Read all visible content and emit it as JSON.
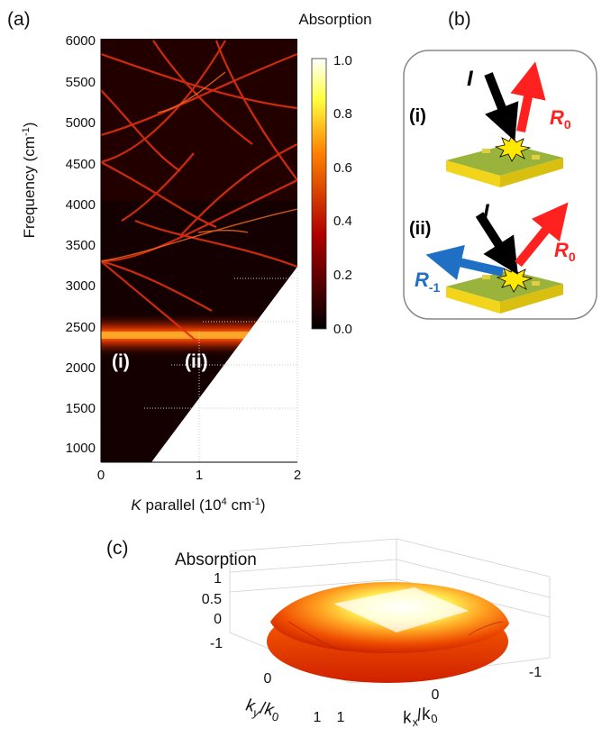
{
  "panels": {
    "a": {
      "label": "(a)"
    },
    "b": {
      "label": "(b)"
    },
    "c": {
      "label": "(c)"
    }
  },
  "colors": {
    "hot_black": "#000000",
    "hot_red": "#c00000",
    "hot_orange": "#ff7a00",
    "hot_yellow": "#ffff40",
    "hot_white": "#ffffff",
    "incident_arrow": "#000000",
    "reflected_arrow": "#ff2020",
    "diffracted_arrow": "#1f6fc4",
    "substrate_green": "#9ab33a",
    "substrate_yellow": "#f2d51a",
    "sparkle": "#ffe800"
  },
  "chart_data": [
    {
      "type": "heatmap",
      "title": "Absorption",
      "ylabel": "Frequency (cm⁻¹)",
      "xlabel": "K parallel (10⁴ cm⁻¹)",
      "xlim": [
        0,
        2
      ],
      "ylim": [
        800,
        6000
      ],
      "xticks": [
        "0",
        "1",
        "2"
      ],
      "yticks": [
        "1000",
        "1500",
        "2000",
        "2500",
        "3000",
        "3500",
        "4000",
        "4500",
        "5000",
        "5500",
        "6000"
      ],
      "colorbar": {
        "min": 0.0,
        "max": 1.0,
        "ticks": [
          "0.0",
          "0.2",
          "0.4",
          "0.6",
          "0.8",
          "1.0"
        ],
        "colormap": "hot"
      },
      "annotations": [
        "(i)",
        "(ii)"
      ],
      "features": {
        "strong_band_frequency": 2330,
        "crossing_frequency_at_k0": 3290,
        "light_line_corner": [
          0.5,
          800
        ],
        "light_line_top": [
          2,
          3200
        ]
      }
    },
    {
      "type": "surface",
      "title": "Absorption",
      "zticks": [
        "0",
        "0.5",
        "1"
      ],
      "x_label": "kx/k0",
      "y_label": "ky/k0",
      "kx_ticks": [
        "-1",
        "0",
        "1"
      ],
      "ky_ticks": [
        "-1",
        "0",
        "1"
      ]
    }
  ],
  "diagram": {
    "case_i": {
      "label": "(i)",
      "incident": "I",
      "reflected": "R",
      "reflected_sub": "0"
    },
    "case_ii": {
      "label": "(ii)",
      "incident": "I",
      "reflected": "R",
      "reflected_sub": "0",
      "diffracted": "R",
      "diffracted_sub": "-1"
    }
  }
}
